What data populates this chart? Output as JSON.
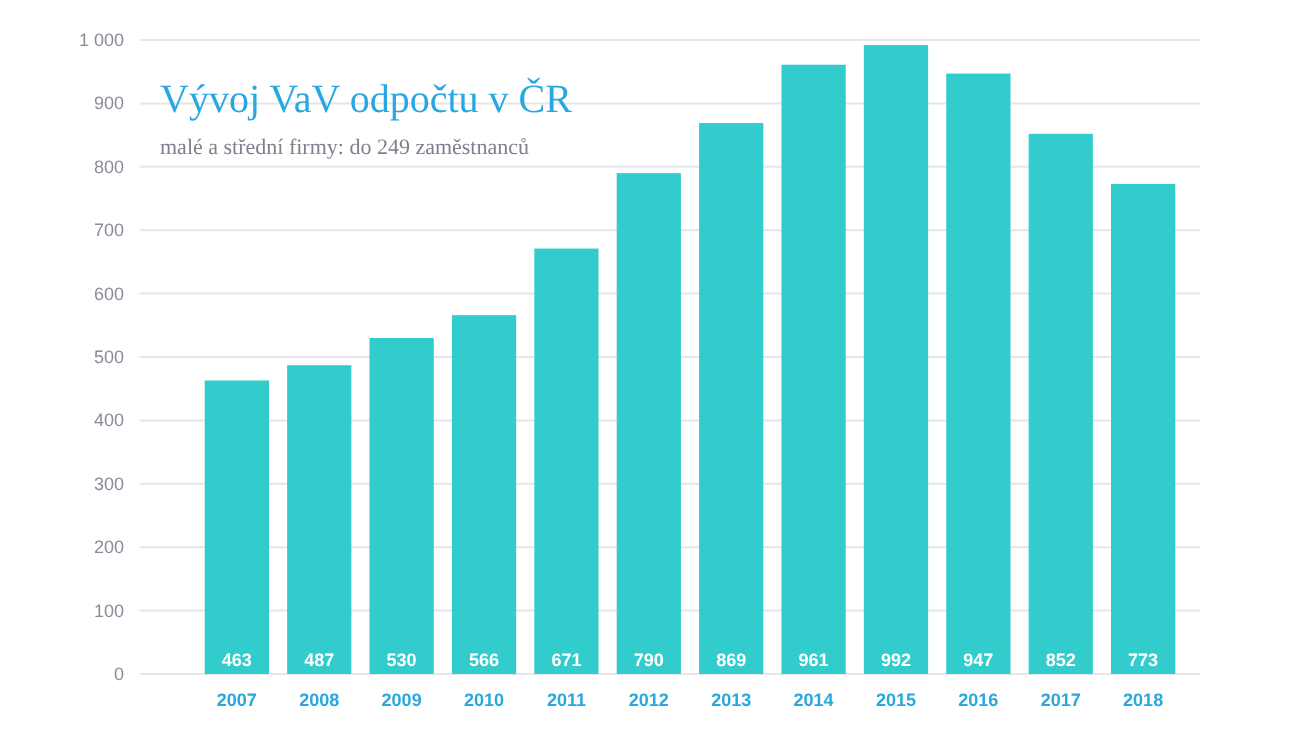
{
  "chart_data": {
    "type": "bar",
    "title": "Vývoj VaV odpočtu v ČR",
    "subtitle": "malé a střední firmy: do 249 zaměstnanců",
    "categories": [
      "2007",
      "2008",
      "2009",
      "2010",
      "2011",
      "2012",
      "2013",
      "2014",
      "2015",
      "2016",
      "2017",
      "2018"
    ],
    "values": [
      463,
      487,
      530,
      566,
      671,
      790,
      869,
      961,
      992,
      947,
      852,
      773
    ],
    "color": "#33cccc",
    "ylim": [
      0,
      1000
    ],
    "yticks": [
      0,
      100,
      200,
      300,
      400,
      500,
      600,
      700,
      800,
      900,
      {
        "value": 1000,
        "label": "1 000"
      }
    ],
    "grid": "y",
    "data_labels": true
  }
}
